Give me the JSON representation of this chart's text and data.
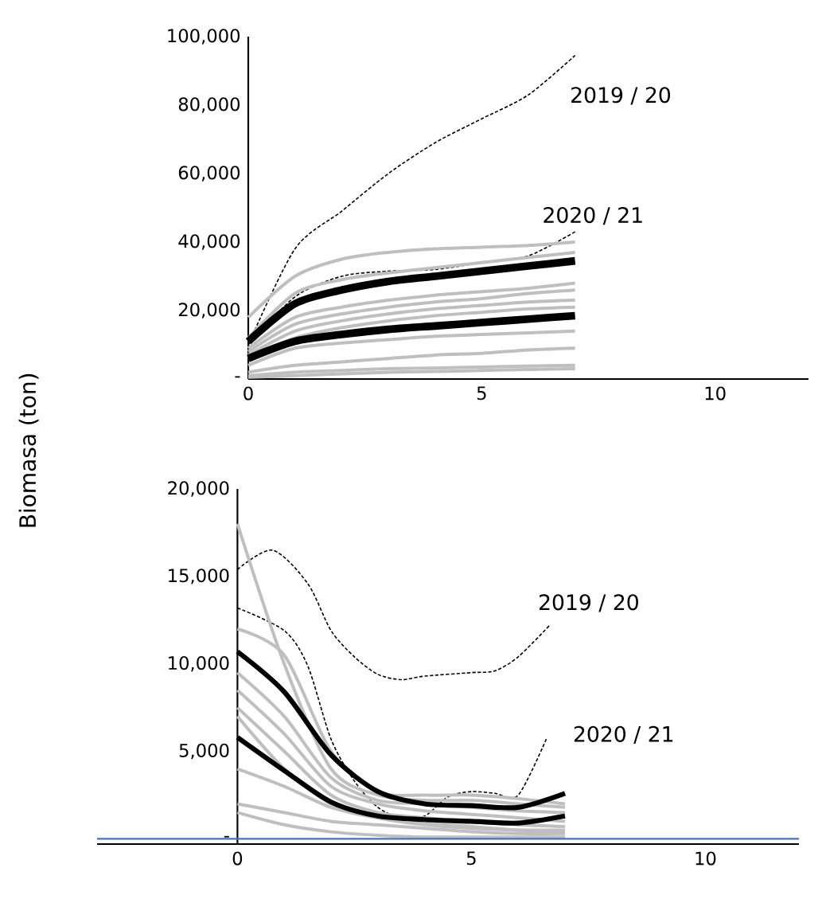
{
  "chart_data": [
    {
      "type": "line",
      "ylabel": "Biomasa (ton)",
      "xlim": [
        0,
        12
      ],
      "ylim": [
        0,
        100000
      ],
      "xticks": [
        0,
        5,
        10
      ],
      "yticks": [
        {
          "value": 0,
          "label": "-"
        },
        {
          "value": 20000,
          "label": "20,000"
        },
        {
          "value": 40000,
          "label": "40,000"
        },
        {
          "value": 60000,
          "label": "60,000"
        },
        {
          "value": 80000,
          "label": "80,000"
        },
        {
          "value": 100000,
          "label": "100,000"
        }
      ],
      "grid": false,
      "marker": "none",
      "x": [
        0,
        1,
        2,
        3,
        4,
        5,
        6,
        7
      ],
      "series": [
        {
          "name": "2019 / 20",
          "color": "#000000",
          "line_style": "dashed",
          "values": [
            10000,
            38000,
            49000,
            60000,
            69000,
            76000,
            83000,
            94500
          ]
        },
        {
          "name": "2020 / 21",
          "color": "#000000",
          "line_style": "dashed",
          "values": [
            10000,
            24000,
            30000,
            31500,
            32000,
            34000,
            36000,
            43000
          ]
        },
        {
          "color": "#bfbfbf",
          "values": [
            18000,
            30000,
            35000,
            37000,
            38000,
            38500,
            39000,
            40000
          ]
        },
        {
          "color": "#bfbfbf",
          "values": [
            12000,
            25000,
            29000,
            31000,
            32500,
            34000,
            35500,
            37000
          ]
        },
        {
          "color": "#bfbfbf",
          "values": [
            9000,
            18000,
            21000,
            23000,
            24500,
            25500,
            26500,
            28000
          ]
        },
        {
          "color": "#bfbfbf",
          "values": [
            8000,
            16000,
            19000,
            21000,
            22500,
            23500,
            25000,
            26000
          ]
        },
        {
          "color": "#bfbfbf",
          "values": [
            7000,
            14000,
            17000,
            19000,
            20500,
            21500,
            22500,
            23000
          ]
        },
        {
          "color": "#bfbfbf",
          "values": [
            6000,
            12000,
            15000,
            17000,
            18500,
            19500,
            20500,
            21000
          ]
        },
        {
          "color": "#bfbfbf",
          "values": [
            4000,
            9000,
            10500,
            11500,
            12500,
            13000,
            13500,
            14000
          ]
        },
        {
          "color": "#bfbfbf",
          "values": [
            2000,
            4000,
            5000,
            6000,
            7000,
            7500,
            8500,
            9000
          ]
        },
        {
          "color": "#bfbfbf",
          "values": [
            1000,
            2000,
            2500,
            3000,
            3200,
            3500,
            3800,
            4000
          ]
        },
        {
          "color": "#bfbfbf",
          "values": [
            500,
            1000,
            1500,
            2000,
            2200,
            2500,
            2800,
            3000
          ]
        },
        {
          "color": "#000000",
          "values": [
            11000,
            22000,
            26000,
            28500,
            30000,
            31500,
            33000,
            34500
          ]
        },
        {
          "color": "#000000",
          "values": [
            6000,
            11000,
            13000,
            14500,
            15500,
            16500,
            17500,
            18500
          ]
        }
      ]
    },
    {
      "type": "line",
      "xlim": [
        -3,
        12
      ],
      "ylim": [
        -300,
        20000
      ],
      "xticks": [
        0,
        5,
        10
      ],
      "yticks": [
        {
          "value": 0,
          "label": "-"
        },
        {
          "value": 5000,
          "label": "5,000"
        },
        {
          "value": 10000,
          "label": "10,000"
        },
        {
          "value": 15000,
          "label": "15,000"
        },
        {
          "value": 20000,
          "label": "20,000"
        }
      ],
      "grid": false,
      "marker": "none",
      "x": [
        0,
        1,
        2,
        3,
        4,
        5,
        6,
        7
      ],
      "ref_lines": [
        {
          "axis": "y",
          "value": 0,
          "color": "#4472c4"
        }
      ],
      "series": [
        {
          "name": "2019 / 20",
          "color": "#000000",
          "line_style": "dashed",
          "x": [
            0,
            0.75,
            1.5,
            2,
            2.5,
            3,
            3.5,
            4,
            5,
            5.5,
            6,
            6.67
          ],
          "values": [
            15400,
            16500,
            14600,
            11900,
            10400,
            9400,
            9100,
            9300,
            9500,
            9600,
            10400,
            12200
          ]
        },
        {
          "name": "2020 / 21",
          "color": "#000000",
          "line_style": "dashed",
          "x": [
            0,
            1,
            1.5,
            2,
            2.5,
            3,
            3.5,
            4,
            4.5,
            5,
            5.5,
            6,
            6.6
          ],
          "values": [
            13200,
            11900,
            9900,
            5700,
            3300,
            1800,
            1200,
            1300,
            2400,
            2700,
            2600,
            2500,
            5700
          ]
        },
        {
          "color": "#bfbfbf",
          "values": [
            18000,
            10000,
            4000,
            2500,
            2200,
            2200,
            2000,
            1800
          ]
        },
        {
          "color": "#bfbfbf",
          "values": [
            12000,
            10500,
            5000,
            2700,
            2500,
            2500,
            2300,
            2000
          ]
        },
        {
          "color": "#bfbfbf",
          "values": [
            9500,
            7000,
            3500,
            2200,
            2000,
            1800,
            1600,
            1500
          ]
        },
        {
          "color": "#bfbfbf",
          "values": [
            8500,
            6000,
            3000,
            2000,
            1600,
            1400,
            1200,
            1000
          ]
        },
        {
          "color": "#bfbfbf",
          "values": [
            7500,
            5000,
            2500,
            1500,
            1200,
            1000,
            800,
            700
          ]
        },
        {
          "color": "#bfbfbf",
          "values": [
            7000,
            4000,
            2000,
            1200,
            800,
            600,
            500,
            500
          ]
        },
        {
          "color": "#bfbfbf",
          "values": [
            4000,
            3000,
            1800,
            1200,
            900,
            700,
            500,
            400
          ]
        },
        {
          "color": "#bfbfbf",
          "values": [
            2000,
            1500,
            1000,
            800,
            600,
            400,
            300,
            300
          ]
        },
        {
          "color": "#bfbfbf",
          "values": [
            1500,
            800,
            400,
            200,
            100,
            100,
            100,
            100
          ]
        },
        {
          "color": "#000000",
          "values": [
            10700,
            8400,
            4800,
            2700,
            2000,
            1900,
            1800,
            2600
          ]
        },
        {
          "color": "#000000",
          "values": [
            5800,
            3900,
            2100,
            1300,
            1100,
            1000,
            900,
            1300
          ]
        }
      ]
    }
  ]
}
